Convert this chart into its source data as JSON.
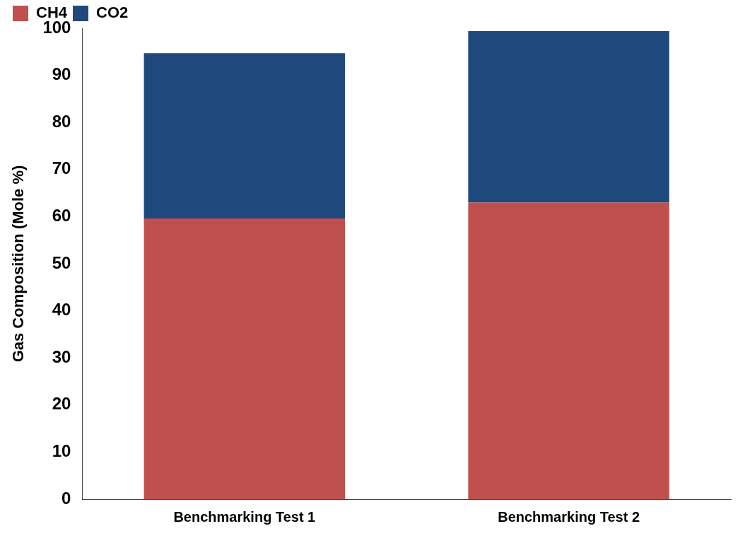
{
  "chart_data": {
    "type": "bar",
    "ylabel": "Gas Composition (Mole %)",
    "categories": [
      "Benchmarking Test 1",
      "Benchmarking Test 2"
    ],
    "series": [
      {
        "name": "CH4",
        "color": "#c0504d",
        "values": [
          59.6,
          63.0
        ]
      },
      {
        "name": "CO2",
        "color": "#1f497d",
        "values": [
          35.1,
          36.4
        ]
      }
    ],
    "stacked": true,
    "ylim": [
      0,
      100
    ],
    "yticks": [
      0,
      10,
      20,
      30,
      40,
      50,
      60,
      70,
      80,
      90,
      100
    ],
    "grid": false,
    "legend": "top left"
  }
}
